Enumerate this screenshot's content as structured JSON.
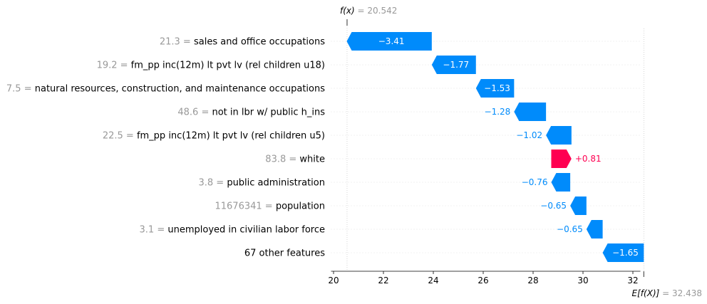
{
  "chart_data": {
    "type": "waterfall",
    "fx_label": "f(x)",
    "fx_value": "20.542",
    "ex_label": "E[f(X)]",
    "ex_value": "32.438",
    "base_value": 32.438,
    "output_value": 20.542,
    "xlim": [
      19.9,
      32.3
    ],
    "xticks": [
      20,
      22,
      24,
      26,
      28,
      30,
      32
    ],
    "colors": {
      "negative": "#008bfb",
      "positive": "#ff0051",
      "label_gray": "#999999"
    },
    "features": [
      {
        "value": "21.3",
        "name": "sales and office occupations",
        "contribution": -3.41,
        "label": "−3.41"
      },
      {
        "value": "19.2",
        "name": "fm_pp inc(12m) lt pvt lv (rel children u18)",
        "contribution": -1.77,
        "label": "−1.77"
      },
      {
        "value": "7.5",
        "name": "natural resources, construction, and maintenance occupations",
        "contribution": -1.53,
        "label": "−1.53"
      },
      {
        "value": "48.6",
        "name": "not in lbr w/ public h_ins",
        "contribution": -1.28,
        "label": "−1.28"
      },
      {
        "value": "22.5",
        "name": "fm_pp inc(12m) lt pvt lv (rel children u5)",
        "contribution": -1.02,
        "label": "−1.02"
      },
      {
        "value": "83.8",
        "name": "white",
        "contribution": 0.81,
        "label": "+0.81"
      },
      {
        "value": "3.8",
        "name": "public administration",
        "contribution": -0.76,
        "label": "−0.76"
      },
      {
        "value": "11676341",
        "name": "population",
        "contribution": -0.65,
        "label": "−0.65"
      },
      {
        "value": "3.1",
        "name": "unemployed  in civilian labor force",
        "contribution": -0.65,
        "label": "−0.65"
      },
      {
        "value": "",
        "name": "67 other features",
        "contribution": -1.65,
        "label": "−1.65"
      }
    ]
  }
}
